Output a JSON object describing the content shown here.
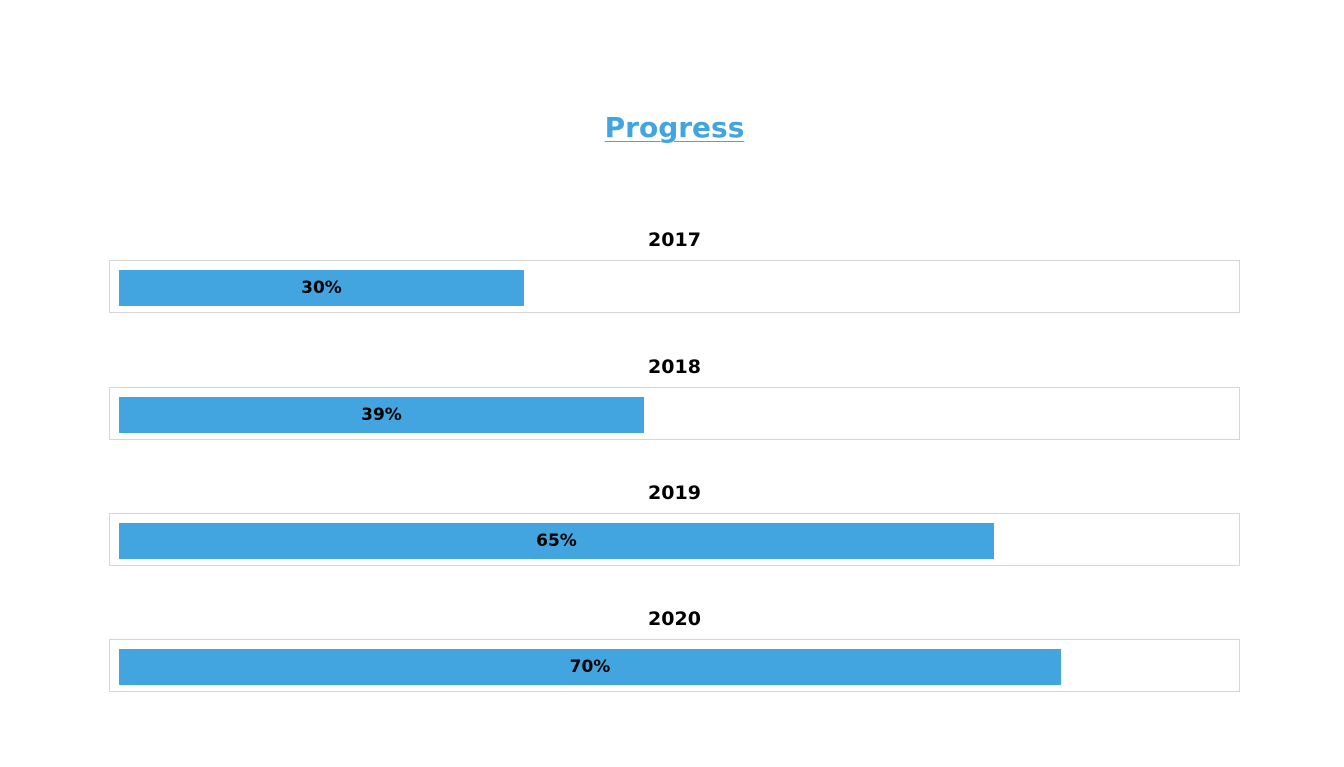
{
  "page": {
    "title": "Progress",
    "accent_color": "#42a5df"
  },
  "progress": [
    {
      "year": "2017",
      "label": "30%",
      "value": 0.3594
    },
    {
      "year": "2018",
      "label": "39%",
      "value": 0.4663
    },
    {
      "year": "2019",
      "label": "65%",
      "value": 0.7774
    },
    {
      "year": "2020",
      "label": "70%",
      "value": 0.8368
    }
  ]
}
